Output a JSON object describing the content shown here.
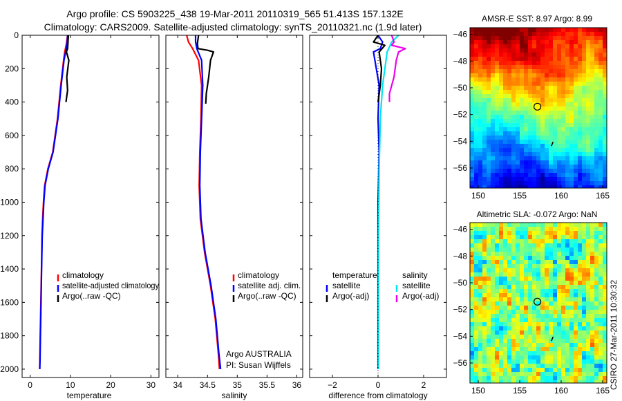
{
  "figure": {
    "title_line1": "Argo profile: CS 5903225_438 19-Mar-2011 20110319_565 51.413S 157.132E",
    "title_line2": "Climatology: CARS2009. Satellite-adjusted climatology: synTS_20110321.nc (1.9d later)",
    "side_label": "CSIRO 27-Mar-2011 10:30:32",
    "credit_line1": "Argo AUSTRALIA",
    "credit_line2": "PI: Susan Wijffels"
  },
  "colors": {
    "climatology": "#ff0000",
    "satellite": "#0000ff",
    "argo": "#000000",
    "sal_satellite": "#00e5ee",
    "sal_argo": "#ee00ee"
  },
  "chart_data": [
    {
      "type": "line",
      "id": "temperature",
      "xlabel": "temperature",
      "xlim": [
        -2,
        32
      ],
      "xticks": [
        0,
        10,
        20,
        30
      ],
      "ylim": [
        2050,
        0
      ],
      "yticks": [
        0,
        200,
        400,
        600,
        800,
        1000,
        1200,
        1400,
        1600,
        1800,
        2000
      ],
      "legend": [
        "climatology",
        "satellite-adjusted climatology",
        "Argo(..raw -QC)"
      ],
      "series": [
        {
          "name": "climatology",
          "color": "#ff0000",
          "x": [
            9.3,
            9.0,
            8.6,
            8.3,
            7.6,
            6.8,
            5.6,
            4.4,
            3.6,
            3.3,
            3.1,
            2.95,
            2.8,
            2.65,
            2.5,
            2.4,
            2.35
          ],
          "y": [
            0,
            50,
            100,
            150,
            300,
            500,
            700,
            800,
            900,
            1000,
            1100,
            1200,
            1400,
            1600,
            1800,
            1950,
            2000
          ]
        },
        {
          "name": "satellite-adjusted climatology",
          "color": "#0000ff",
          "x": [
            9.3,
            9.2,
            8.8,
            8.4,
            7.7,
            6.9,
            5.7,
            4.5,
            3.7,
            3.4,
            3.2,
            3.0,
            2.85,
            2.7,
            2.55,
            2.45,
            2.4
          ],
          "y": [
            0,
            50,
            100,
            150,
            300,
            500,
            700,
            800,
            900,
            1000,
            1100,
            1200,
            1400,
            1600,
            1800,
            1950,
            2000
          ]
        },
        {
          "name": "Argo(..raw -QC)",
          "color": "#000000",
          "x": [
            9.5,
            9.4,
            9.3,
            9.0,
            9.6,
            9.1,
            9.3,
            9.0,
            8.9
          ],
          "y": [
            0,
            40,
            80,
            100,
            150,
            250,
            330,
            380,
            400
          ]
        }
      ]
    },
    {
      "type": "line",
      "id": "salinity",
      "xlabel": "salinity",
      "xlim": [
        33.8,
        36.1
      ],
      "xticks": [
        34,
        34.5,
        35,
        35.5,
        36
      ],
      "ylim": [
        2050,
        0
      ],
      "yticks": [
        0,
        200,
        400,
        600,
        800,
        1000,
        1200,
        1400,
        1600,
        1800,
        2000
      ],
      "legend": [
        "climatology",
        "satellite adj. clim.",
        "Argo(..raw -QC)"
      ],
      "series": [
        {
          "name": "climatology",
          "color": "#ff0000",
          "x": [
            34.15,
            34.18,
            34.25,
            34.35,
            34.4,
            34.39,
            34.37,
            34.36,
            34.38,
            34.45,
            34.55,
            34.63,
            34.68,
            34.7
          ],
          "y": [
            0,
            40,
            80,
            150,
            300,
            500,
            700,
            900,
            1100,
            1300,
            1500,
            1700,
            1900,
            2000
          ]
        },
        {
          "name": "satellite adj. clim.",
          "color": "#0000ff",
          "x": [
            34.3,
            34.3,
            34.32,
            34.4,
            34.42,
            34.4,
            34.38,
            34.37,
            34.39,
            34.46,
            34.56,
            34.64,
            34.69,
            34.72
          ],
          "y": [
            0,
            40,
            80,
            150,
            300,
            500,
            700,
            900,
            1100,
            1300,
            1500,
            1700,
            1900,
            2000
          ]
        },
        {
          "name": "Argo(..raw -QC)",
          "color": "#000000",
          "x": [
            34.35,
            34.33,
            34.34,
            34.5,
            34.6,
            34.55,
            34.52,
            34.48,
            34.47
          ],
          "y": [
            0,
            50,
            80,
            90,
            100,
            150,
            250,
            350,
            410
          ]
        }
      ]
    },
    {
      "type": "line",
      "id": "difference",
      "xlabel": "difference from climatology",
      "xlim": [
        -3,
        3
      ],
      "xticks": [
        -2,
        0,
        2
      ],
      "ylim": [
        2050,
        0
      ],
      "yticks": [
        0,
        200,
        400,
        600,
        800,
        1000,
        1200,
        1400,
        1600,
        1800,
        2000
      ],
      "legend_left_title": "temperature",
      "legend_left": [
        "satellite",
        "Argo(-adj)"
      ],
      "legend_right_title": "salinity",
      "legend_right": [
        "satellite",
        "Argo(-adj)"
      ],
      "series": [
        {
          "name": "temperature satellite",
          "color": "#0000ff",
          "x": [
            0.0,
            0.2,
            0.1,
            -0.2,
            0.05,
            0.0,
            0.05,
            0.0,
            0.0,
            0.0,
            0.0
          ],
          "y": [
            0,
            40,
            80,
            100,
            300,
            500,
            700,
            1000,
            1400,
            1800,
            2000
          ]
        },
        {
          "name": "temperature Argo(-adj)",
          "color": "#000000",
          "x": [
            0.0,
            -0.2,
            0.3,
            0.05,
            0.15,
            0.1,
            0.0
          ],
          "y": [
            0,
            40,
            60,
            100,
            200,
            300,
            400
          ]
        },
        {
          "name": "salinity satellite",
          "color": "#00e5ee",
          "x": [
            0.9,
            0.6,
            0.4,
            0.3,
            0.2,
            0.1,
            0.05,
            0.02,
            0.02
          ],
          "y": [
            0,
            40,
            100,
            200,
            300,
            500,
            800,
            1200,
            2000
          ]
        },
        {
          "name": "salinity Argo(-adj)",
          "color": "#ee00ee",
          "x": [
            0.6,
            0.7,
            0.6,
            1.2,
            0.9,
            0.8,
            0.7,
            0.5,
            0.5
          ],
          "y": [
            0,
            40,
            60,
            80,
            100,
            150,
            250,
            350,
            400
          ]
        }
      ]
    },
    {
      "type": "heatmap",
      "id": "sst-map",
      "title": "AMSR-E SST: 8.97 Argo: 8.99",
      "xlim": [
        149,
        165.5
      ],
      "ylim": [
        -57.5,
        -45.5
      ],
      "xticks": [
        150,
        155,
        160,
        165
      ],
      "yticks": [
        -46,
        -48,
        -50,
        -52,
        -54,
        -56
      ],
      "profile_position": {
        "lon": 157.132,
        "lat": -51.413
      }
    },
    {
      "type": "heatmap",
      "id": "sla-map",
      "title": "Altimetric SLA: -0.072 Argo: NaN",
      "xlim": [
        149,
        165.5
      ],
      "ylim": [
        -57.5,
        -45.5
      ],
      "xticks": [
        150,
        155,
        160,
        165
      ],
      "yticks": [
        -46,
        -48,
        -50,
        -52,
        -54,
        -56
      ],
      "profile_position": {
        "lon": 157.132,
        "lat": -51.413
      }
    }
  ]
}
